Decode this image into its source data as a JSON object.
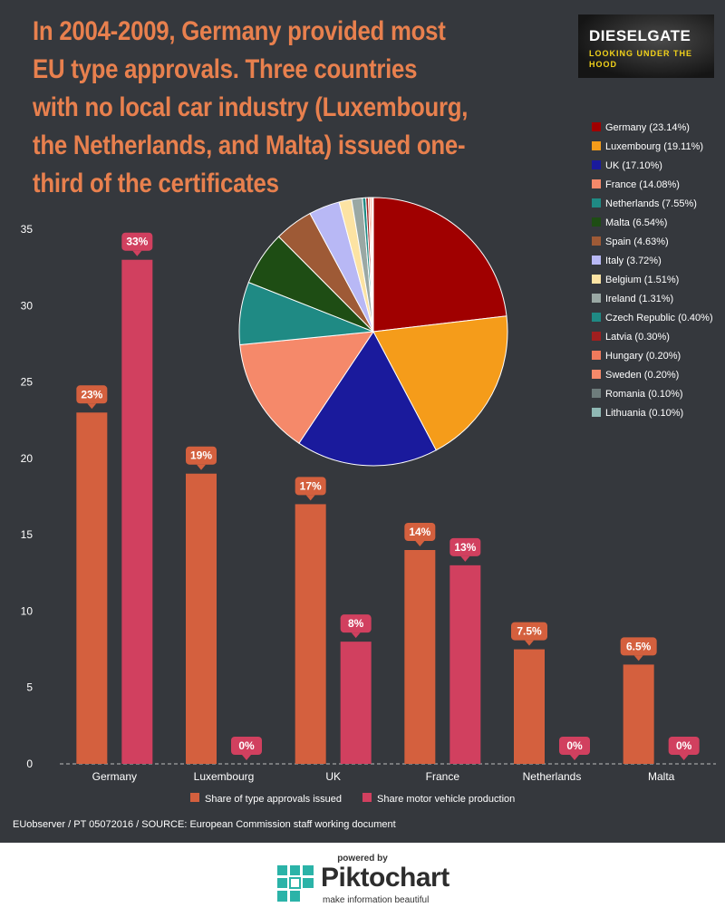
{
  "title": "In 2004-2009, Germany provided most EU type approvals. Three countries with no local car industry (Luxembourg, the Netherlands, and Malta) issued one-third of the certificates",
  "brand": {
    "name": "DIESELGATE",
    "tagline": "LOOKING UNDER THE HOOD"
  },
  "source": "EUobserver / PT 05072016 / SOURCE: European Commission staff working document",
  "footer": {
    "powered_by": "powered by",
    "logo_name": "Piktochart",
    "logo_tagline": "make information beautiful"
  },
  "colors": {
    "background": "#35383d",
    "title": "#e8804e",
    "bar_approvals": "#d4603e",
    "bar_production": "#d1405f"
  },
  "chart_data": [
    {
      "type": "bar",
      "categories": [
        "Germany",
        "Luxembourg",
        "UK",
        "France",
        "Netherlands",
        "Malta"
      ],
      "yticks": [
        "0",
        "5",
        "10",
        "15",
        "20",
        "25",
        "30",
        "35"
      ],
      "ylim": [
        0,
        35
      ],
      "grid": false,
      "legend_position": "bottom",
      "series": [
        {
          "name": "Share of type approvals issued",
          "color": "#d4603e",
          "values": [
            23,
            19,
            17,
            14,
            7.5,
            6.5
          ],
          "labels": [
            "23%",
            "19%",
            "17%",
            "14%",
            "7.5%",
            "6.5%"
          ]
        },
        {
          "name": "Share motor vehicle production",
          "color": "#d1405f",
          "values": [
            33,
            0,
            8,
            13,
            0,
            0
          ],
          "labels": [
            "33%",
            "0%",
            "8%",
            "13%",
            "0%",
            "0%"
          ]
        }
      ]
    },
    {
      "type": "pie",
      "legend_position": "right",
      "slices": [
        {
          "label": "Germany (23.14%)",
          "value": 23.14,
          "color": "#a00000"
        },
        {
          "label": "Luxembourg (19.11%)",
          "value": 19.11,
          "color": "#f59c1a"
        },
        {
          "label": "UK (17.10%)",
          "value": 17.1,
          "color": "#1a1a9c"
        },
        {
          "label": "France (14.08%)",
          "value": 14.08,
          "color": "#f5896a"
        },
        {
          "label": "Netherlands (7.55%)",
          "value": 7.55,
          "color": "#1f8a84"
        },
        {
          "label": "Malta (6.54%)",
          "value": 6.54,
          "color": "#1e4d14"
        },
        {
          "label": "Spain (4.63%)",
          "value": 4.63,
          "color": "#9e5a36"
        },
        {
          "label": "Italy (3.72%)",
          "value": 3.72,
          "color": "#b8b8f5"
        },
        {
          "label": "Belgium (1.51%)",
          "value": 1.51,
          "color": "#fce3a3"
        },
        {
          "label": "Ireland (1.31%)",
          "value": 1.31,
          "color": "#9aa8a4"
        },
        {
          "label": "Czech Republic (0.40%)",
          "value": 0.4,
          "color": "#1f8a84"
        },
        {
          "label": "Latvia (0.30%)",
          "value": 0.3,
          "color": "#a01f1f"
        },
        {
          "label": "Hungary (0.20%)",
          "value": 0.2,
          "color": "#f07a5c"
        },
        {
          "label": "Sweden (0.20%)",
          "value": 0.2,
          "color": "#f5896a"
        },
        {
          "label": "Romania (0.10%)",
          "value": 0.1,
          "color": "#6e7c7c"
        },
        {
          "label": "Lithuania (0.10%)",
          "value": 0.1,
          "color": "#8fb8b4"
        }
      ]
    }
  ]
}
